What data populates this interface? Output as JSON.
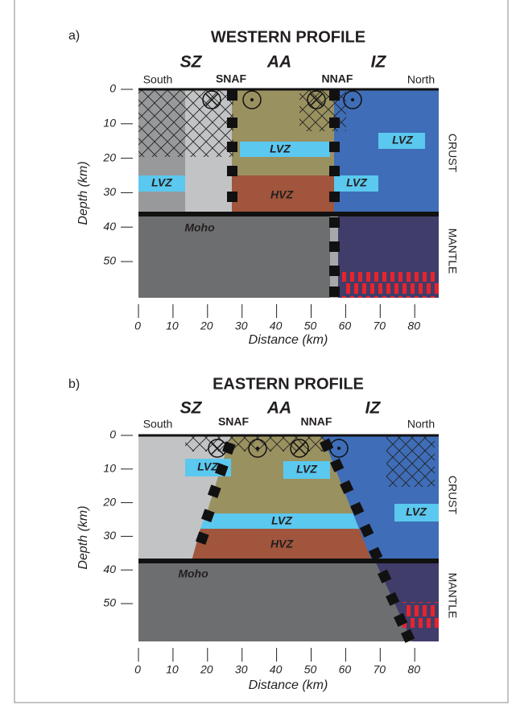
{
  "panels": [
    {
      "label": "a)",
      "title": "WESTERN PROFILE",
      "zones": [
        "SZ",
        "AA",
        "IZ"
      ],
      "faults": [
        "SNAF",
        "NNAF"
      ],
      "south": "South",
      "north": "North",
      "lvz_labels": [
        "LVZ",
        "LVZ",
        "LVZ",
        "LVZ"
      ],
      "hvz_label": "HVZ",
      "moho_label": "Moho",
      "crust_label": "CRUST",
      "mantle_label": "MANTLE",
      "y_axis_label": "Depth (km)",
      "x_axis_label": "Distance (km)",
      "yticks": [
        0,
        10,
        20,
        30,
        40,
        50
      ],
      "xticks": [
        0,
        10,
        20,
        30,
        40,
        50,
        60,
        70,
        80
      ]
    },
    {
      "label": "b)",
      "title": "EASTERN PROFILE",
      "zones": [
        "SZ",
        "AA",
        "IZ"
      ],
      "faults": [
        "SNAF",
        "NNAF"
      ],
      "south": "South",
      "north": "North",
      "lvz_labels": [
        "LVZ",
        "LVZ",
        "LVZ",
        "LVZ"
      ],
      "hvz_label": "HVZ",
      "moho_label": "Moho",
      "crust_label": "CRUST",
      "mantle_label": "MANTLE",
      "y_axis_label": "Depth (km)",
      "x_axis_label": "Distance (km)",
      "yticks": [
        0,
        10,
        20,
        30,
        40,
        50
      ],
      "xticks": [
        0,
        10,
        20,
        30,
        40,
        50,
        60,
        70,
        80
      ]
    }
  ]
}
